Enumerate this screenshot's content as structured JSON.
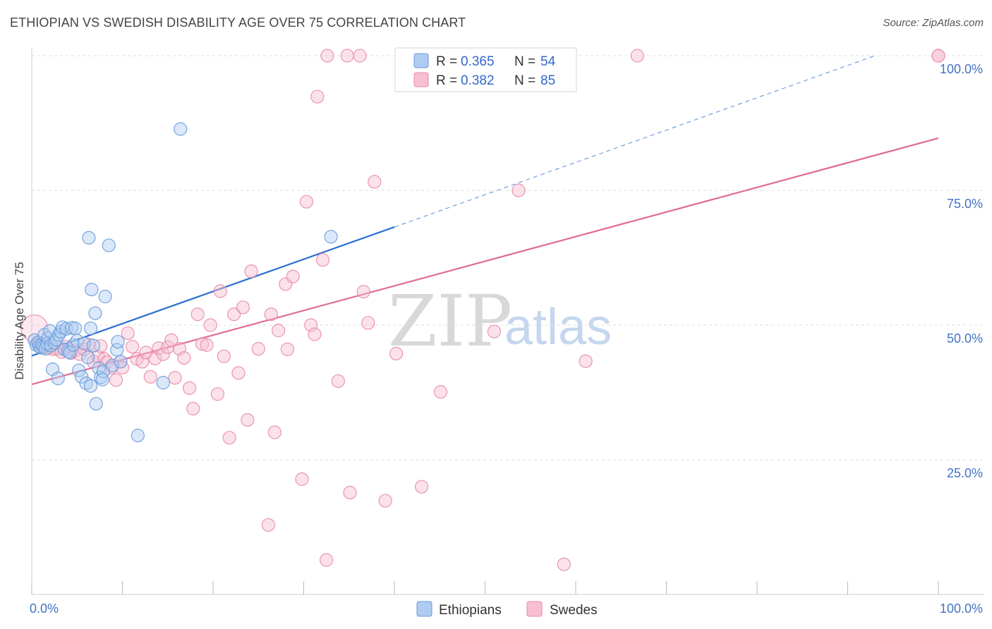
{
  "header": {
    "title": "ETHIOPIAN VS SWEDISH DISABILITY AGE OVER 75 CORRELATION CHART",
    "source": "Source: ZipAtlas.com"
  },
  "watermark": {
    "zip": "ZIP",
    "atlas": "atlas"
  },
  "colors": {
    "ethiopians_fill": "#aecbf2",
    "ethiopians_stroke": "#6b9ad8",
    "ethiopians_line": "#2d6fd1",
    "swedes_fill": "#f7bfd1",
    "swedes_stroke": "#e88aa8",
    "swedes_line": "#e06c93",
    "grid": "#dddddd",
    "tick_text": "#4472c4"
  },
  "legend": {
    "rows": [
      {
        "r_label": "R =",
        "r_value": "0.365",
        "n_label": "N =",
        "n_value": "54"
      },
      {
        "r_label": "R =",
        "r_value": "0.382",
        "n_label": "N =",
        "n_value": "85"
      }
    ]
  },
  "chart_data": {
    "type": "scatter",
    "title": "ETHIOPIAN VS SWEDISH DISABILITY AGE OVER 75 CORRELATION CHART",
    "xlabel": "",
    "ylabel": "Disability Age Over 75",
    "xlim": [
      0,
      100
    ],
    "ylim": [
      0,
      100
    ],
    "x_tick_labels": [
      "0.0%",
      "100.0%"
    ],
    "y_ticks": [
      25,
      50,
      75,
      100
    ],
    "y_tick_labels": [
      "25.0%",
      "50.0%",
      "75.0%",
      "100.0%"
    ],
    "grid": true,
    "series": [
      {
        "name": "Ethiopians",
        "r": 0.365,
        "n": 54,
        "trend": {
          "x0": 0,
          "y0": 44.3,
          "x1": 40,
          "y1": 68.2,
          "dashed_to_x": 93,
          "dashed_to_y": 100
        },
        "points": [
          [
            0.3,
            47.2
          ],
          [
            0.5,
            46.3
          ],
          [
            0.7,
            46.8
          ],
          [
            0.8,
            46.1
          ],
          [
            1.0,
            45.8
          ],
          [
            1.1,
            46.4
          ],
          [
            1.3,
            46.0
          ],
          [
            1.4,
            48.2
          ],
          [
            1.5,
            45.6
          ],
          [
            1.7,
            46.5
          ],
          [
            1.8,
            47.6
          ],
          [
            2.0,
            48.9
          ],
          [
            2.1,
            46.2
          ],
          [
            2.3,
            41.8
          ],
          [
            2.5,
            46.7
          ],
          [
            2.7,
            47.3
          ],
          [
            2.9,
            40.1
          ],
          [
            3.0,
            48.2
          ],
          [
            3.2,
            48.8
          ],
          [
            3.4,
            49.6
          ],
          [
            3.6,
            45.5
          ],
          [
            3.8,
            49.3
          ],
          [
            4.0,
            45.1
          ],
          [
            4.2,
            44.9
          ],
          [
            4.4,
            49.5
          ],
          [
            4.6,
            46.3
          ],
          [
            4.8,
            49.4
          ],
          [
            5.0,
            47.1
          ],
          [
            5.2,
            41.6
          ],
          [
            5.5,
            40.4
          ],
          [
            5.8,
            46.6
          ],
          [
            6.0,
            39.2
          ],
          [
            6.2,
            44.0
          ],
          [
            6.5,
            38.7
          ],
          [
            6.8,
            46.2
          ],
          [
            6.3,
            66.2
          ],
          [
            6.5,
            49.4
          ],
          [
            6.6,
            56.6
          ],
          [
            7.1,
            35.4
          ],
          [
            7.4,
            42.0
          ],
          [
            7.0,
            52.2
          ],
          [
            7.6,
            40.3
          ],
          [
            7.9,
            41.4
          ],
          [
            7.8,
            39.9
          ],
          [
            8.1,
            55.3
          ],
          [
            8.5,
            64.8
          ],
          [
            8.9,
            42.5
          ],
          [
            9.4,
            45.4
          ],
          [
            9.5,
            46.9
          ],
          [
            9.8,
            43.2
          ],
          [
            11.7,
            29.5
          ],
          [
            14.5,
            39.3
          ],
          [
            16.4,
            86.4
          ],
          [
            33.0,
            66.4
          ]
        ]
      },
      {
        "name": "Swedes",
        "r": 0.382,
        "n": 85,
        "trend": {
          "x0": 0,
          "y0": 39.0,
          "x1": 100,
          "y1": 84.7
        },
        "points": [
          [
            0.3,
            49.4
          ],
          [
            0.8,
            46.7
          ],
          [
            1.3,
            46.1
          ],
          [
            1.8,
            45.7
          ],
          [
            2.3,
            45.5
          ],
          [
            2.8,
            45.6
          ],
          [
            3.3,
            45.0
          ],
          [
            3.8,
            46.0
          ],
          [
            4.3,
            44.8
          ],
          [
            4.8,
            45.3
          ],
          [
            5.3,
            44.6
          ],
          [
            5.8,
            45.5
          ],
          [
            6.3,
            46.4
          ],
          [
            6.8,
            43.2
          ],
          [
            7.3,
            44.2
          ],
          [
            7.6,
            46.1
          ],
          [
            8.0,
            43.7
          ],
          [
            8.3,
            43.1
          ],
          [
            8.8,
            42.1
          ],
          [
            9.3,
            39.8
          ],
          [
            9.8,
            43.2
          ],
          [
            10.0,
            42.1
          ],
          [
            10.6,
            48.5
          ],
          [
            11.1,
            46.0
          ],
          [
            11.6,
            43.7
          ],
          [
            12.2,
            43.2
          ],
          [
            12.6,
            44.9
          ],
          [
            13.1,
            40.4
          ],
          [
            13.6,
            43.8
          ],
          [
            14.0,
            45.7
          ],
          [
            14.5,
            44.6
          ],
          [
            15.0,
            45.9
          ],
          [
            15.4,
            47.2
          ],
          [
            15.8,
            40.2
          ],
          [
            16.3,
            45.6
          ],
          [
            16.8,
            43.9
          ],
          [
            17.4,
            38.3
          ],
          [
            17.8,
            34.5
          ],
          [
            18.3,
            52.0
          ],
          [
            18.8,
            46.5
          ],
          [
            19.3,
            46.3
          ],
          [
            19.7,
            50.0
          ],
          [
            20.5,
            37.2
          ],
          [
            20.8,
            56.3
          ],
          [
            21.2,
            44.2
          ],
          [
            21.8,
            29.1
          ],
          [
            22.3,
            52.0
          ],
          [
            22.8,
            41.1
          ],
          [
            23.3,
            53.3
          ],
          [
            23.8,
            32.4
          ],
          [
            24.2,
            60.0
          ],
          [
            25.0,
            45.6
          ],
          [
            26.1,
            12.9
          ],
          [
            26.4,
            52.0
          ],
          [
            26.8,
            30.1
          ],
          [
            27.2,
            49.0
          ],
          [
            28.0,
            57.6
          ],
          [
            28.2,
            45.5
          ],
          [
            28.8,
            59.0
          ],
          [
            29.8,
            21.4
          ],
          [
            30.3,
            72.9
          ],
          [
            30.8,
            50.0
          ],
          [
            31.2,
            48.3
          ],
          [
            31.5,
            92.4
          ],
          [
            32.1,
            62.1
          ],
          [
            32.5,
            6.4
          ],
          [
            32.6,
            100.0
          ],
          [
            33.8,
            39.6
          ],
          [
            34.8,
            100.0
          ],
          [
            35.1,
            18.9
          ],
          [
            36.2,
            100.0
          ],
          [
            36.6,
            56.2
          ],
          [
            37.1,
            50.4
          ],
          [
            37.8,
            76.6
          ],
          [
            39.0,
            17.4
          ],
          [
            40.2,
            44.7
          ],
          [
            43.0,
            20.0
          ],
          [
            45.1,
            37.6
          ],
          [
            51.0,
            48.8
          ],
          [
            53.7,
            75.0
          ],
          [
            58.7,
            5.6
          ],
          [
            61.1,
            43.3
          ],
          [
            66.8,
            100.0
          ],
          [
            100.0,
            100.0
          ],
          [
            100.0,
            100.0
          ]
        ]
      }
    ]
  },
  "bottom_legend": {
    "items": [
      {
        "label": "Ethiopians"
      },
      {
        "label": "Swedes"
      }
    ]
  }
}
